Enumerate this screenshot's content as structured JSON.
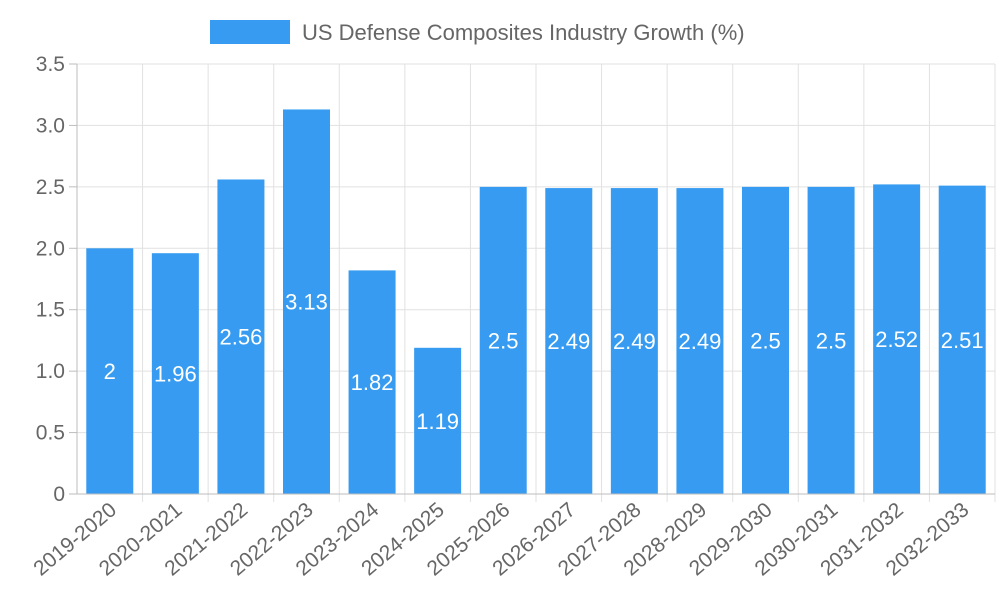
{
  "chart_data": {
    "type": "bar",
    "title": "",
    "xlabel": "",
    "ylabel": "",
    "categories": [
      "2019-2020",
      "2020-2021",
      "2021-2022",
      "2022-2023",
      "2023-2024",
      "2024-2025",
      "2025-2026",
      "2026-2027",
      "2027-2028",
      "2028-2029",
      "2029-2030",
      "2030-2031",
      "2031-2032",
      "2032-2033"
    ],
    "series": [
      {
        "name": "US Defense Composites Industry Growth (%)",
        "values": [
          2,
          1.96,
          2.56,
          3.13,
          1.82,
          1.19,
          2.5,
          2.49,
          2.49,
          2.49,
          2.5,
          2.5,
          2.52,
          2.51
        ],
        "color": "#379cf1"
      }
    ],
    "data_labels": [
      "2",
      "1.96",
      "2.56",
      "3.13",
      "1.82",
      "1.19",
      "2.5",
      "2.49",
      "2.49",
      "2.49",
      "2.5",
      "2.5",
      "2.52",
      "2.51"
    ],
    "ylim": [
      0,
      3.5
    ],
    "yticks": [
      "0",
      "0.5",
      "1.0",
      "1.5",
      "2.0",
      "2.5",
      "3.0",
      "3.5"
    ],
    "grid": true,
    "legend": "top"
  }
}
